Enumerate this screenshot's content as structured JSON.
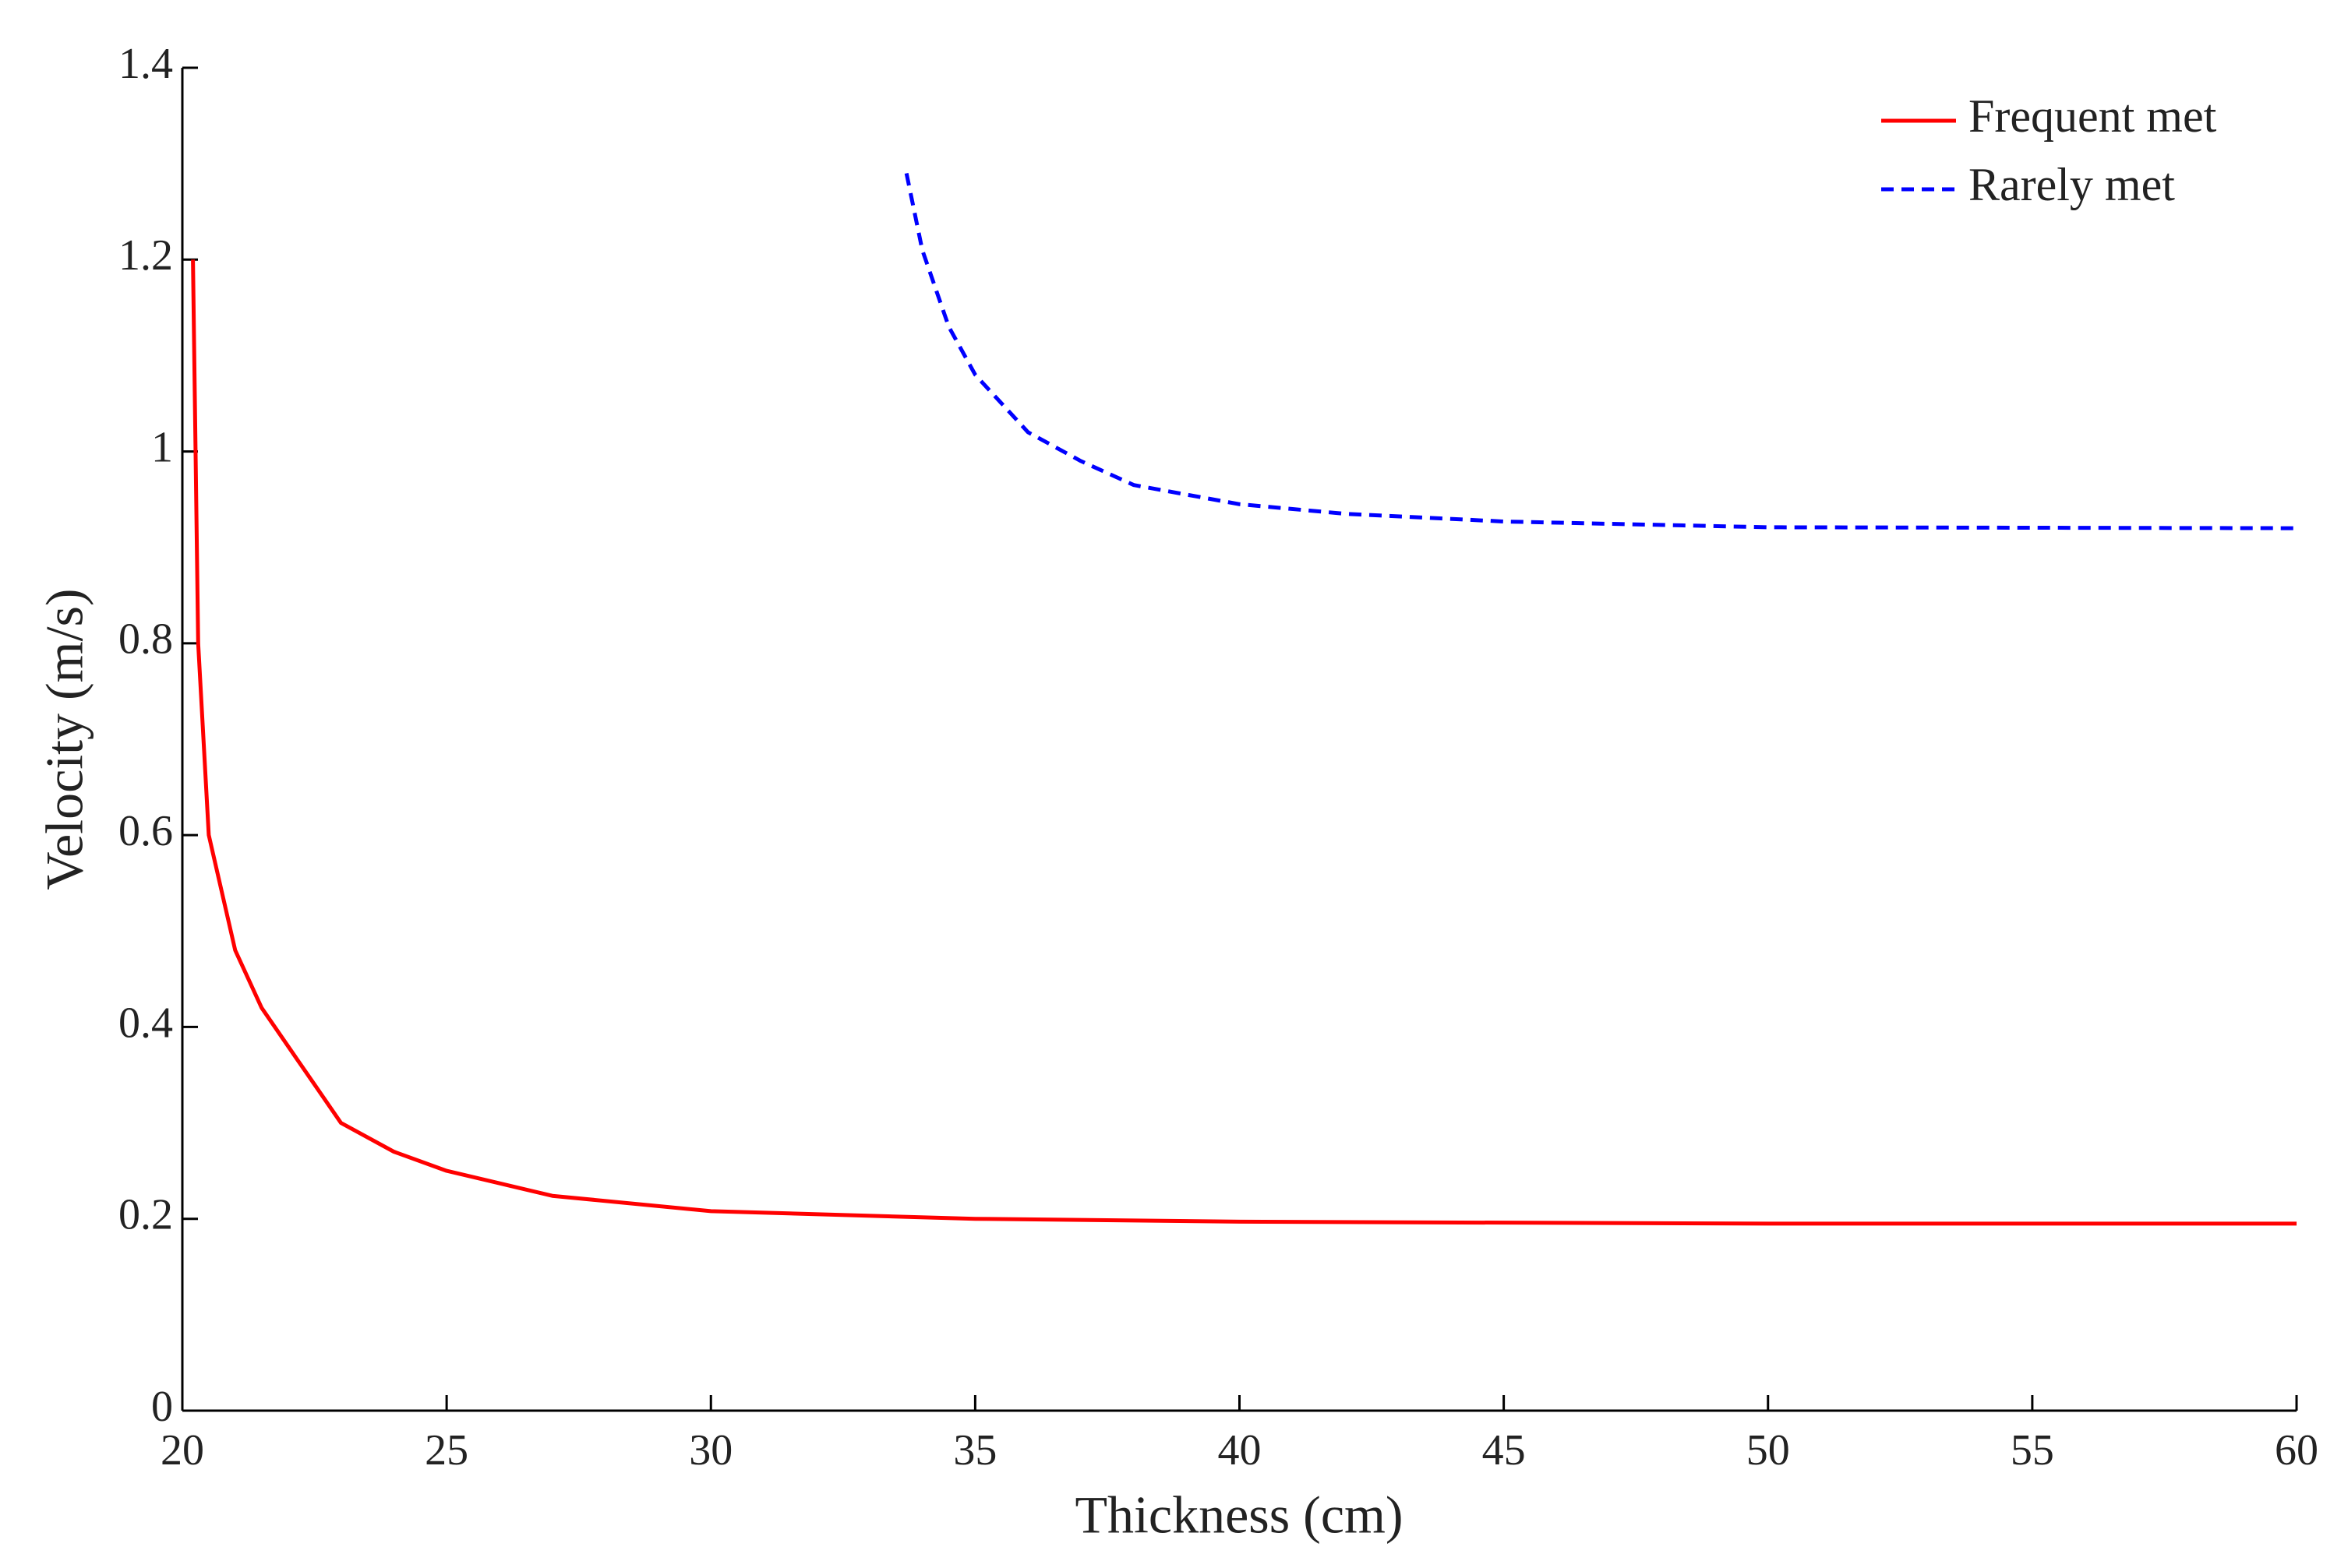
{
  "chart_data": {
    "type": "line",
    "xlabel": "Thickness (cm)",
    "ylabel": "Velocity (m/s)",
    "xlim": [
      20,
      60
    ],
    "ylim": [
      0,
      1.4
    ],
    "xticks": [
      20,
      25,
      30,
      35,
      40,
      45,
      50,
      55,
      60
    ],
    "yticks": [
      0,
      0.2,
      0.4,
      0.6,
      0.8,
      1,
      1.2,
      1.4
    ],
    "legend": "upper right",
    "series": [
      {
        "name": "Frequent met",
        "color": "#ff0000",
        "style": "solid",
        "x": [
          20.2,
          20.3,
          20.5,
          21,
          21.5,
          22,
          22.5,
          23,
          24,
          25,
          27,
          30,
          35,
          40,
          50,
          60
        ],
        "values": [
          1.2,
          0.8,
          0.6,
          0.48,
          0.42,
          0.38,
          0.34,
          0.3,
          0.27,
          0.25,
          0.224,
          0.208,
          0.2,
          0.197,
          0.195,
          0.195
        ]
      },
      {
        "name": "Rarely met",
        "color": "#0000ff",
        "style": "dashed",
        "x": [
          33.7,
          34,
          34.5,
          35,
          36,
          37,
          38,
          40,
          42,
          45,
          50,
          60
        ],
        "values": [
          1.29,
          1.21,
          1.13,
          1.08,
          1.02,
          0.99,
          0.965,
          0.945,
          0.935,
          0.927,
          0.921,
          0.92
        ]
      }
    ]
  }
}
